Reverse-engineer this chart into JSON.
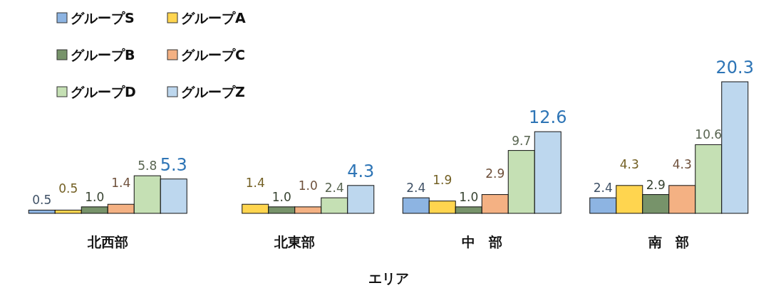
{
  "chart_data": {
    "type": "bar",
    "xlabel": "エリア",
    "categories": [
      "北西部",
      "北東部",
      "中　部",
      "南　部"
    ],
    "series": [
      {
        "name": "グループS",
        "color": "#8db4e2",
        "values": [
          0.5,
          null,
          2.4,
          2.4
        ],
        "value_labels": [
          "0.5",
          null,
          "2.4",
          "2.4"
        ]
      },
      {
        "name": "グループA",
        "color": "#ffd54f",
        "values": [
          0.5,
          1.4,
          1.9,
          4.3
        ],
        "value_labels": [
          "0.5",
          "1.4",
          "1.9",
          "4.3"
        ]
      },
      {
        "name": "グループB",
        "color": "#77936a",
        "values": [
          1,
          1,
          1,
          2.9
        ],
        "value_labels": [
          "1.0",
          "1.0",
          "1.0",
          "2.9"
        ]
      },
      {
        "name": "グループC",
        "color": "#f4b183",
        "values": [
          1.4,
          1,
          2.9,
          4.3
        ],
        "value_labels": [
          "1.4",
          "1.0",
          "2.9",
          "4.3"
        ]
      },
      {
        "name": "グループD",
        "color": "#c5e0b4",
        "values": [
          5.8,
          2.4,
          9.7,
          10.6
        ],
        "value_labels": [
          "5.8",
          "2.4",
          "9.7",
          "10.6"
        ]
      },
      {
        "name": "グループZ",
        "color": "#bdd7ee",
        "values": [
          5.3,
          4.3,
          12.6,
          20.3
        ],
        "value_labels": [
          "5.3",
          "4.3",
          "12.6",
          "20.3"
        ]
      }
    ],
    "legend": "top left",
    "grid": false
  }
}
